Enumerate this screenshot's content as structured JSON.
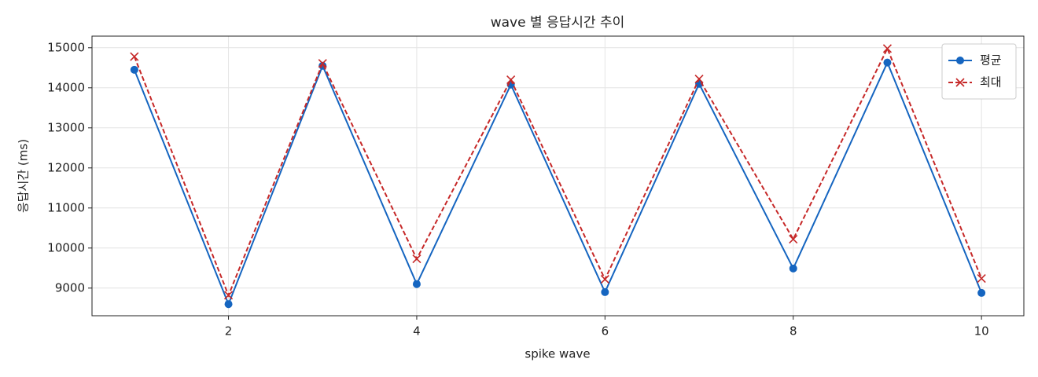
{
  "chart_data": {
    "type": "line",
    "title": "wave 별 응답시간 추이",
    "xlabel": "spike wave",
    "ylabel": "응답시간 (ms)",
    "x": [
      1,
      2,
      3,
      4,
      5,
      6,
      7,
      8,
      9,
      10
    ],
    "series": [
      {
        "name": "평균",
        "color": "#1565c0",
        "marker": "o",
        "linestyle": "solid",
        "values": [
          14450,
          8600,
          14550,
          9100,
          14080,
          8900,
          14100,
          9490,
          14630,
          8880
        ]
      },
      {
        "name": "최대",
        "color": "#c62828",
        "marker": "x",
        "linestyle": "dashed",
        "values": [
          14780,
          8820,
          14610,
          9730,
          14200,
          9220,
          14220,
          10220,
          14980,
          9240
        ]
      }
    ],
    "xlim": [
      0.55,
      10.45
    ],
    "xticks": [
      2,
      4,
      6,
      8,
      10
    ],
    "ylim": [
      8310,
      15290
    ],
    "yticks": [
      9000,
      10000,
      11000,
      12000,
      13000,
      14000,
      15000
    ],
    "grid": true,
    "legend": "upper right"
  }
}
